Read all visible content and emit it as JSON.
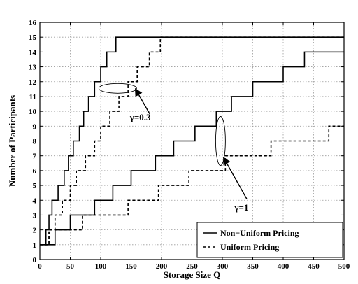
{
  "chart_data": {
    "type": "line",
    "title": "",
    "xlabel": "Storage Size Q",
    "ylabel": "Number of Participants",
    "xlim": [
      0,
      500
    ],
    "ylim": [
      0,
      16
    ],
    "xticks": [
      0,
      50,
      100,
      150,
      200,
      250,
      300,
      350,
      400,
      450,
      500
    ],
    "yticks": [
      0,
      1,
      2,
      3,
      4,
      5,
      6,
      7,
      8,
      9,
      10,
      11,
      12,
      13,
      14,
      15,
      16
    ],
    "grid": true,
    "legend_position": "bottom-right",
    "legend": [
      {
        "label": "Non−Uniform Pricing",
        "style": "solid"
      },
      {
        "label": "Uniform Pricing",
        "style": "dashed"
      }
    ],
    "series": [
      {
        "group": "γ=0.3",
        "style": "solid",
        "color": "#000000",
        "steps": [
          [
            0,
            1
          ],
          [
            10,
            2
          ],
          [
            15,
            3
          ],
          [
            20,
            4
          ],
          [
            30,
            5
          ],
          [
            40,
            6
          ],
          [
            47,
            7
          ],
          [
            55,
            8
          ],
          [
            65,
            9
          ],
          [
            72,
            10
          ],
          [
            80,
            11
          ],
          [
            90,
            12
          ],
          [
            100,
            13
          ],
          [
            110,
            14
          ],
          [
            125,
            15
          ],
          [
            500,
            15
          ]
        ]
      },
      {
        "group": "γ=0.3",
        "style": "dashed",
        "color": "#000000",
        "steps": [
          [
            0,
            1
          ],
          [
            15,
            2
          ],
          [
            25,
            3
          ],
          [
            37,
            4
          ],
          [
            50,
            5
          ],
          [
            60,
            6
          ],
          [
            75,
            7
          ],
          [
            90,
            8
          ],
          [
            100,
            9
          ],
          [
            115,
            10
          ],
          [
            130,
            11
          ],
          [
            145,
            12
          ],
          [
            160,
            13
          ],
          [
            180,
            14
          ],
          [
            198,
            15
          ],
          [
            500,
            15
          ]
        ]
      },
      {
        "group": "γ=1",
        "style": "solid",
        "color": "#000000",
        "steps": [
          [
            0,
            1
          ],
          [
            25,
            2
          ],
          [
            50,
            3
          ],
          [
            90,
            4
          ],
          [
            120,
            5
          ],
          [
            150,
            6
          ],
          [
            190,
            7
          ],
          [
            220,
            8
          ],
          [
            255,
            9
          ],
          [
            290,
            10
          ],
          [
            315,
            11
          ],
          [
            350,
            12
          ],
          [
            400,
            13
          ],
          [
            435,
            14
          ],
          [
            500,
            14
          ]
        ]
      },
      {
        "group": "γ=1",
        "style": "dashed",
        "color": "#000000",
        "steps": [
          [
            0,
            1
          ],
          [
            15,
            2
          ],
          [
            70,
            3
          ],
          [
            145,
            4
          ],
          [
            195,
            5
          ],
          [
            245,
            6
          ],
          [
            305,
            7
          ],
          [
            380,
            8
          ],
          [
            475,
            9
          ],
          [
            500,
            9
          ]
        ]
      }
    ],
    "annotations": [
      {
        "text": "γ=0.3",
        "target": [
          130,
          11.5
        ]
      },
      {
        "text": "γ=1",
        "target": [
          300,
          6
        ]
      }
    ]
  }
}
